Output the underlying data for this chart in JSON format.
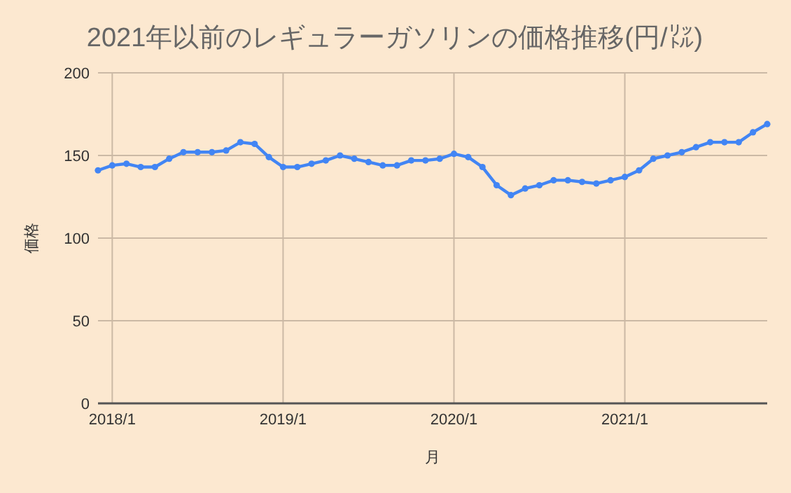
{
  "chart_data": {
    "type": "line",
    "title": "2021年以前のレギュラーガソリンの価格推移(円/㍑)",
    "xlabel": "月",
    "ylabel": "価格",
    "x": [
      "2017-12",
      "2018-01",
      "2018-02",
      "2018-03",
      "2018-04",
      "2018-05",
      "2018-06",
      "2018-07",
      "2018-08",
      "2018-09",
      "2018-10",
      "2018-11",
      "2018-12",
      "2019-01",
      "2019-02",
      "2019-03",
      "2019-04",
      "2019-05",
      "2019-06",
      "2019-07",
      "2019-08",
      "2019-09",
      "2019-10",
      "2019-11",
      "2019-12",
      "2020-01",
      "2020-02",
      "2020-03",
      "2020-04",
      "2020-05",
      "2020-06",
      "2020-07",
      "2020-08",
      "2020-09",
      "2020-10",
      "2020-11",
      "2020-12",
      "2021-01",
      "2021-02",
      "2021-03",
      "2021-04",
      "2021-05",
      "2021-06",
      "2021-07",
      "2021-08",
      "2021-09",
      "2021-10",
      "2021-11"
    ],
    "series": [
      {
        "color": "#4285f4",
        "values": [
          141,
          144,
          145,
          143,
          143,
          148,
          152,
          152,
          152,
          153,
          158,
          157,
          149,
          143,
          143,
          145,
          147,
          150,
          148,
          146,
          144,
          144,
          147,
          147,
          148,
          151,
          149,
          143,
          132,
          126,
          130,
          132,
          135,
          135,
          134,
          133,
          135,
          137,
          141,
          148,
          150,
          152,
          155,
          158,
          158,
          158,
          164,
          169
        ]
      }
    ],
    "xlim": [
      "2017-12",
      "2021-11"
    ],
    "ylim": [
      0,
      200
    ],
    "xticks": [
      {
        "value": "2018-01",
        "label": "2018/1"
      },
      {
        "value": "2019-01",
        "label": "2019/1"
      },
      {
        "value": "2020-01",
        "label": "2020/1"
      },
      {
        "value": "2021-01",
        "label": "2021/1"
      }
    ],
    "yticks": [
      0,
      50,
      100,
      150,
      200
    ],
    "grid": true,
    "marker": "circle",
    "line_style": "solid"
  }
}
